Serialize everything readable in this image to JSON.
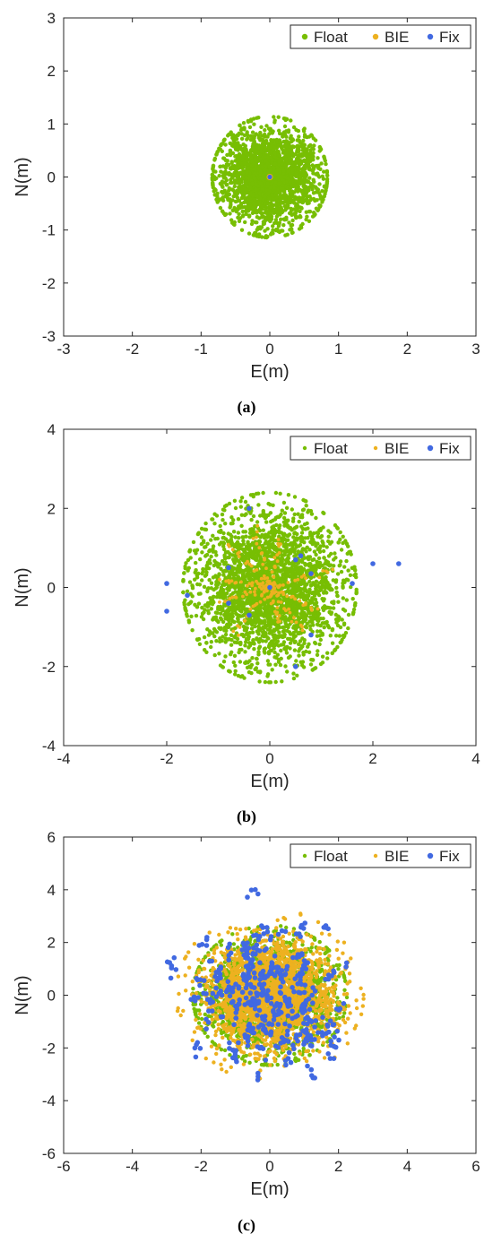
{
  "chart_data": [
    {
      "type": "scatter",
      "panel_label": "(a)",
      "xlabel": "E(m)",
      "ylabel": "N(m)",
      "xlim": [
        -3,
        3
      ],
      "ylim": [
        -3,
        3
      ],
      "xticks": [
        -3,
        -2,
        -1,
        0,
        1,
        2,
        3
      ],
      "yticks": [
        -3,
        -2,
        -1,
        0,
        1,
        2,
        3
      ],
      "grid": false,
      "legend_position": "top-right",
      "series": [
        {
          "name": "Float",
          "color": "#77BE03",
          "distribution": "dense cloud",
          "center": [
            0,
            0
          ],
          "spread": [
            0.82,
            1.12
          ]
        },
        {
          "name": "BIE",
          "color": "#EDB120",
          "points": [
            [
              0,
              0
            ]
          ]
        },
        {
          "name": "Fix",
          "color": "#4169E1",
          "points": [
            [
              0,
              0
            ]
          ]
        }
      ]
    },
    {
      "type": "scatter",
      "panel_label": "(b)",
      "xlabel": "E(m)",
      "ylabel": "N(m)",
      "xlim": [
        -4,
        4
      ],
      "ylim": [
        -4,
        4
      ],
      "xticks": [
        -4,
        -2,
        0,
        2,
        4
      ],
      "yticks": [
        -4,
        -2,
        0,
        2,
        4
      ],
      "grid": false,
      "legend_position": "top-right",
      "series": [
        {
          "name": "Float",
          "color": "#77BE03",
          "distribution": "dense cloud",
          "center": [
            0,
            0
          ],
          "spread": [
            1.65,
            2.35
          ]
        },
        {
          "name": "BIE",
          "color": "#EDB120",
          "distribution": "radial streaks from origin",
          "center": [
            0,
            0
          ],
          "spread": [
            1.0,
            1.6
          ]
        },
        {
          "name": "Fix",
          "color": "#4169E1",
          "points": [
            [
              0,
              0
            ],
            [
              -0.4,
              2.0
            ],
            [
              2.0,
              0.6
            ],
            [
              2.5,
              0.6
            ],
            [
              -2.0,
              0.1
            ],
            [
              -2.0,
              -0.6
            ],
            [
              -1.6,
              -0.2
            ],
            [
              -0.8,
              0.5
            ],
            [
              -0.8,
              -0.4
            ],
            [
              -0.4,
              -0.7
            ],
            [
              0.5,
              0.7
            ],
            [
              0.6,
              0.8
            ],
            [
              0.8,
              0.35
            ],
            [
              0.8,
              -1.2
            ],
            [
              0.5,
              -2.0
            ],
            [
              1.6,
              0.1
            ]
          ]
        }
      ]
    },
    {
      "type": "scatter",
      "panel_label": "(c)",
      "xlabel": "E(m)",
      "ylabel": "N(m)",
      "xlim": [
        -6,
        6
      ],
      "ylim": [
        -6,
        6
      ],
      "xticks": [
        -6,
        -4,
        -2,
        0,
        2,
        4,
        6
      ],
      "yticks": [
        -6,
        -4,
        -2,
        0,
        2,
        4,
        6
      ],
      "grid": false,
      "legend_position": "top-right",
      "series": [
        {
          "name": "Float",
          "color": "#77BE03",
          "distribution": "dense cloud",
          "center": [
            0,
            0
          ],
          "spread": [
            2.2,
            2.6
          ]
        },
        {
          "name": "BIE",
          "color": "#EDB120",
          "distribution": "dense cloud",
          "center": [
            0,
            0
          ],
          "spread": [
            2.0,
            2.4
          ]
        },
        {
          "name": "Fix",
          "color": "#4169E1",
          "distribution": "clustered cloud",
          "center": [
            0,
            0
          ],
          "spread": [
            3.5,
            4.8
          ]
        }
      ]
    }
  ]
}
